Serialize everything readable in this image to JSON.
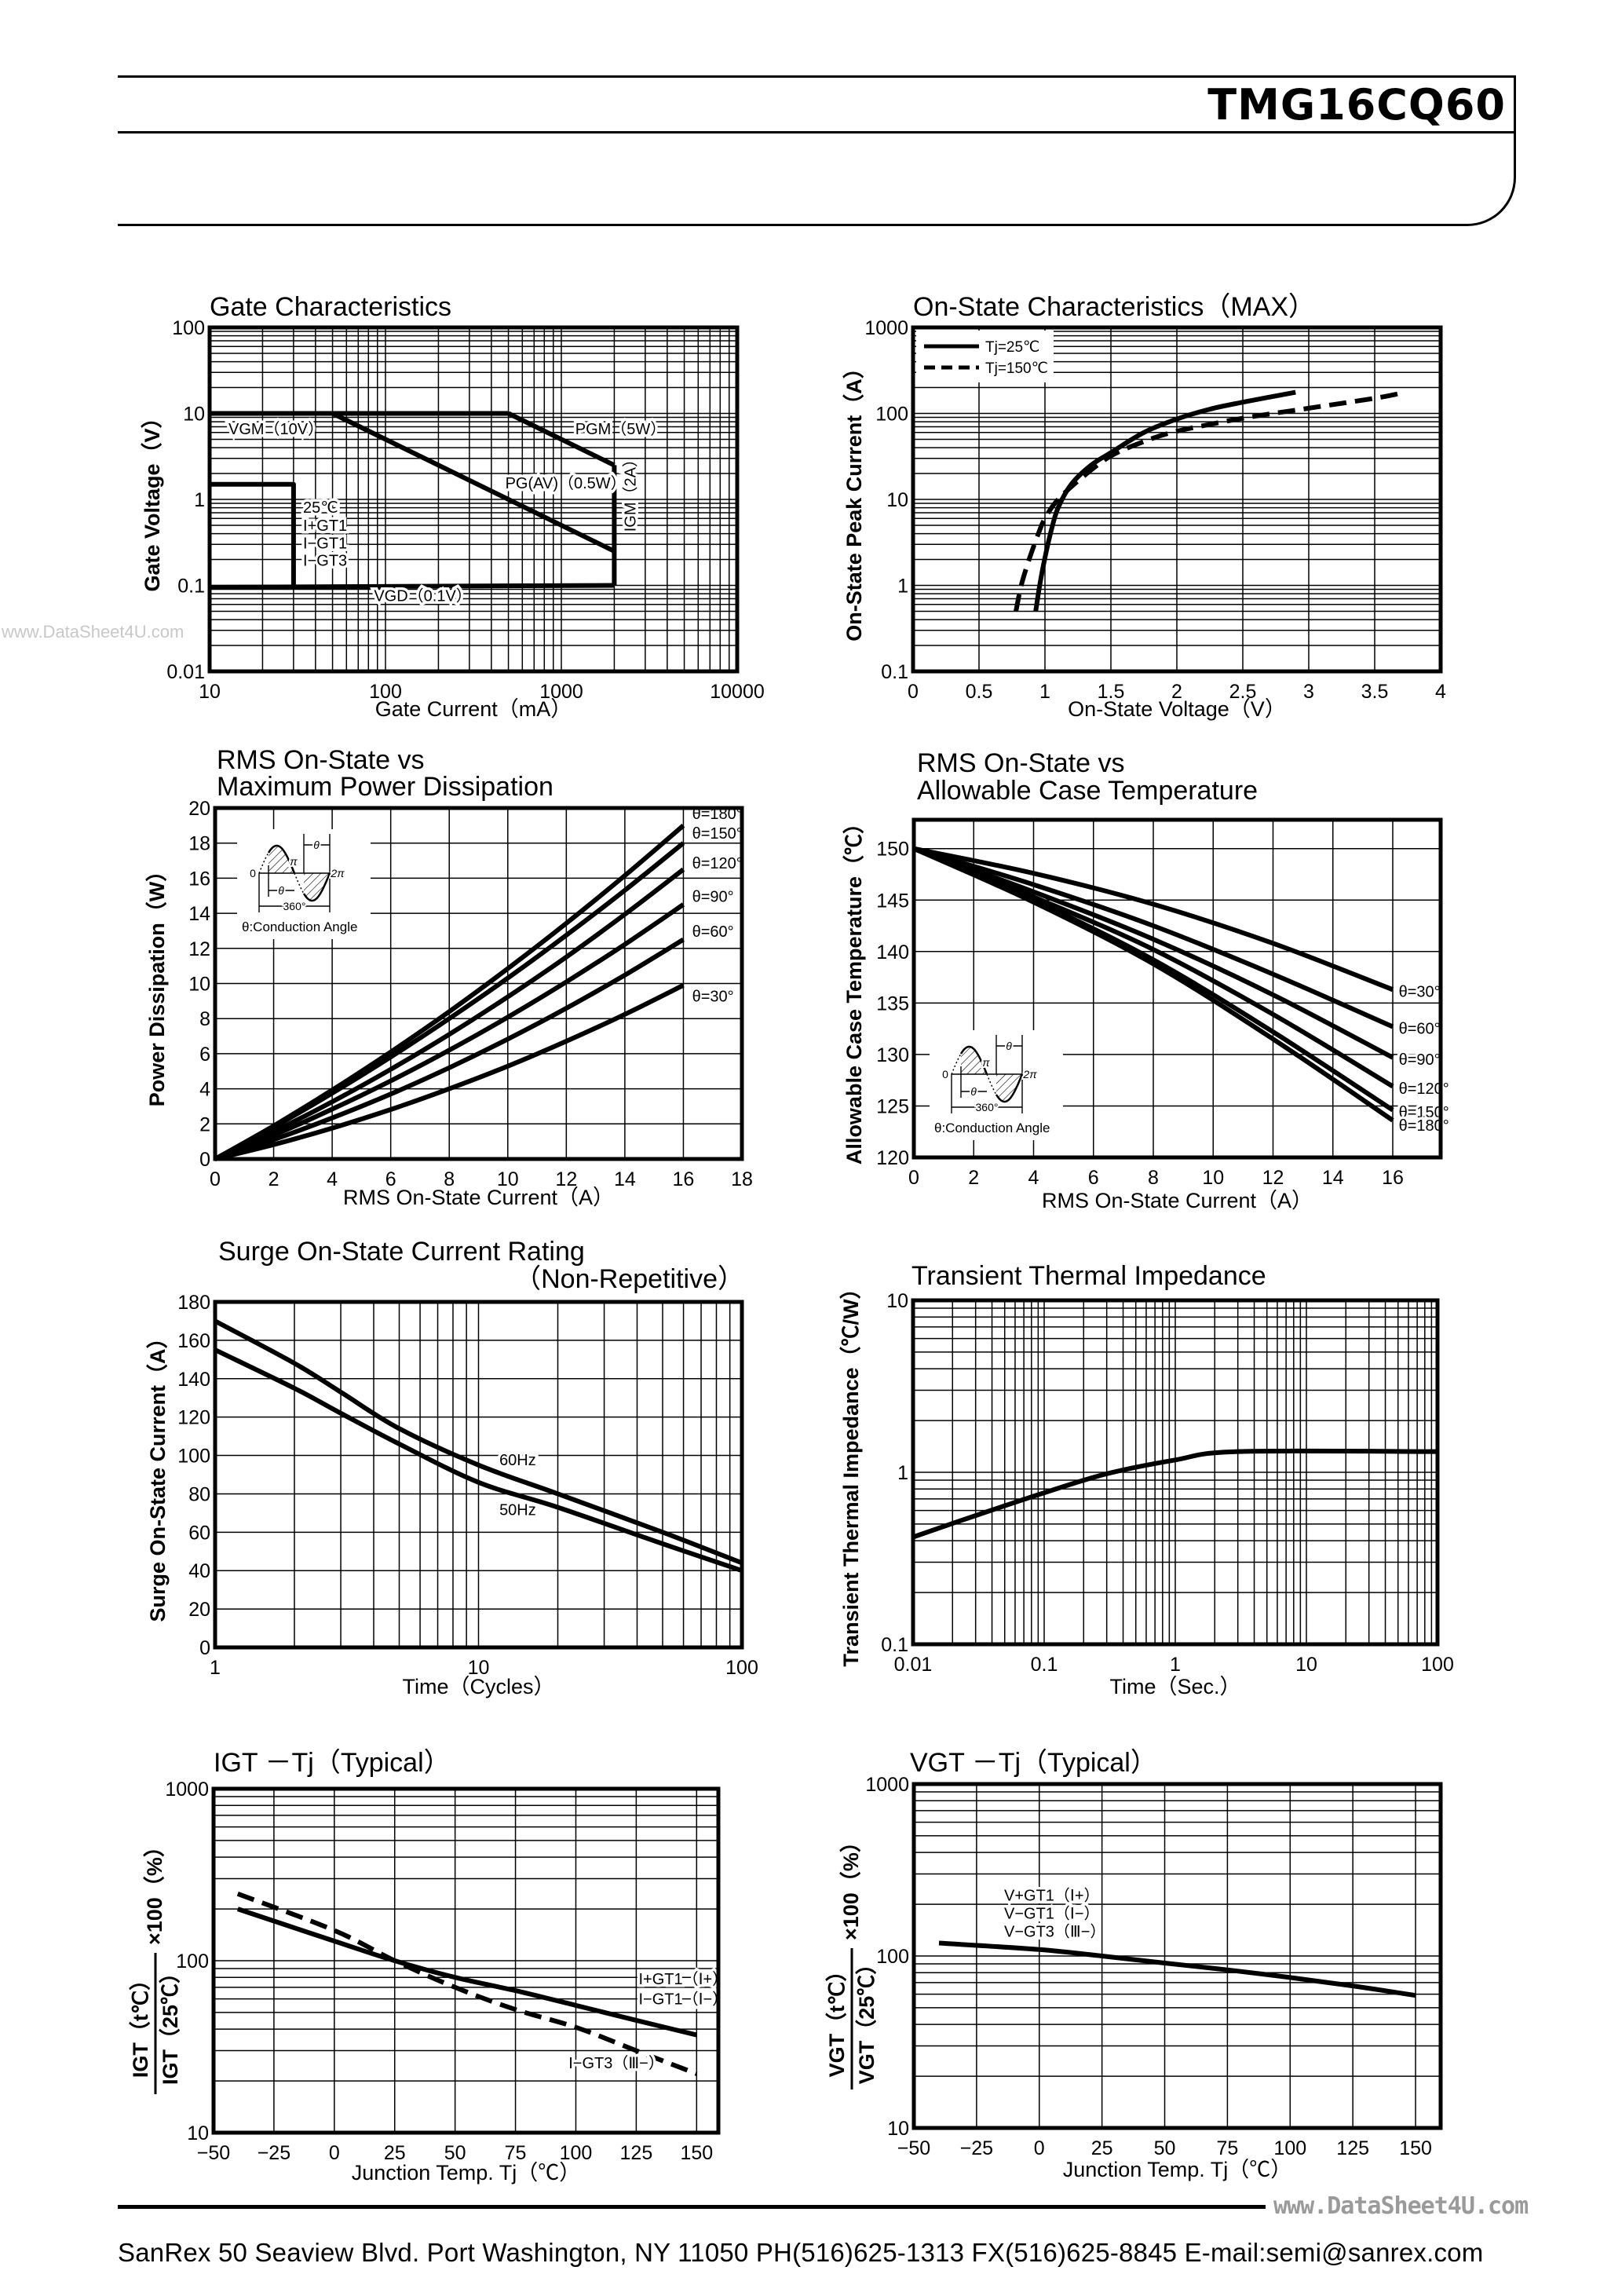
{
  "header": {
    "title": "TMG16CQ60"
  },
  "footer": {
    "address": "SanRex 50 Seaview Blvd. Port Washington, NY 11050 PH(516)625-1313 FX(516)625-8845 E-mail:semi@sanrex.com"
  },
  "watermarks": [
    "www.DataSheet4U.com",
    "www.DataSheet4U.com"
  ],
  "chart_data": [
    {
      "type": "line",
      "title": [
        "Gate Characteristics"
      ],
      "xlabel": "Gate Current（mA）",
      "ylabel": "Gate Voltage（V）",
      "xscale": "log",
      "yscale": "log",
      "xlim": [
        10,
        10000
      ],
      "ylim": [
        0.01,
        100
      ],
      "xtick_labels": [
        "10",
        "100",
        "1000",
        "10000"
      ],
      "ytick_labels": [
        "0.01",
        "0.1",
        "1",
        "10",
        "100"
      ],
      "grid": true,
      "series": [
        {
          "style": "solid",
          "labels": [
            "VGM（10V）"
          ],
          "x": [
            10,
            500
          ],
          "y": [
            10,
            10
          ]
        },
        {
          "style": "solid",
          "labels": [
            "PGM（5W）"
          ],
          "x": [
            500,
            2000
          ],
          "y": [
            10,
            2.5
          ]
        },
        {
          "style": "solid",
          "labels": [
            "IGM（2A）"
          ],
          "x": [
            2000,
            2000
          ],
          "y": [
            2.5,
            0.1
          ]
        },
        {
          "style": "solid",
          "labels": [
            "PG(AV)（0.5W）"
          ],
          "x": [
            50,
            2000
          ],
          "y": [
            10,
            0.25
          ]
        },
        {
          "style": "solid",
          "labels": [
            "VGD（0.1V）"
          ],
          "x": [
            10,
            2000
          ],
          "y": [
            0.095,
            0.1
          ]
        },
        {
          "style": "solid",
          "labels": [
            "25℃",
            "I+GT1",
            "I−GT1",
            "I−GT3"
          ],
          "x": [
            10,
            30,
            30
          ],
          "y": [
            1.5,
            1.5,
            0.1
          ]
        }
      ]
    },
    {
      "type": "line",
      "title": [
        "On-State Characteristics（MAX）"
      ],
      "xlabel": "On-State Voltage（V）",
      "ylabel": "On-State Peak Current（A）",
      "xscale": "linear",
      "yscale": "log",
      "xlim": [
        0,
        4
      ],
      "ylim": [
        0.1,
        1000
      ],
      "xtick_labels": [
        "0",
        "0.5",
        "1",
        "1.5",
        "2",
        "2.5",
        "3",
        "3.5",
        "4"
      ],
      "ytick_labels": [
        "0.1",
        "1",
        "10",
        "100",
        "1000"
      ],
      "grid": true,
      "legend": "top-left",
      "series": [
        {
          "name": "Tj=25℃",
          "style": "solid",
          "labels": [],
          "x": [
            0.93,
            0.96,
            1.0,
            1.05,
            1.1,
            1.2,
            1.35,
            1.5,
            1.75,
            2.0,
            2.25,
            2.5,
            2.9
          ],
          "y": [
            0.5,
            1,
            2.1,
            4.5,
            8,
            15,
            25,
            35,
            60,
            86,
            112,
            135,
            176
          ]
        },
        {
          "name": "Tj=150℃",
          "style": "dashed",
          "labels": [],
          "x": [
            0.78,
            0.82,
            0.88,
            0.95,
            1.0,
            1.1,
            1.3,
            1.5,
            1.75,
            2.0,
            2.5,
            3.0,
            3.5,
            3.7
          ],
          "y": [
            0.5,
            1,
            2,
            4,
            6,
            10,
            19,
            32,
            47,
            62,
            88,
            115,
            150,
            172
          ]
        }
      ]
    },
    {
      "type": "line",
      "title": [
        "RMS On-State vs",
        "Maximum Power Dissipation"
      ],
      "xlabel": "RMS On-State Current（A）",
      "ylabel": "Power Dissipation（W）",
      "xscale": "linear",
      "yscale": "linear",
      "xlim": [
        0,
        18
      ],
      "ylim": [
        0,
        20
      ],
      "xtick_labels": [
        "0",
        "2",
        "4",
        "6",
        "8",
        "10",
        "12",
        "14",
        "16",
        "18"
      ],
      "ytick_labels": [
        "0",
        "2",
        "4",
        "6",
        "8",
        "10",
        "12",
        "14",
        "16",
        "18",
        "20"
      ],
      "grid": true,
      "inset": {
        "zero": "0",
        "pi": "π",
        "two_pi": "2π",
        "theta": "θ",
        "period": "360°",
        "caption": "θ:Conduction Angle"
      },
      "series": [
        {
          "style": "solid",
          "labels": [
            "θ=180°"
          ],
          "x": [
            0,
            2,
            4,
            6,
            8,
            10,
            12,
            14,
            16
          ],
          "y": [
            0,
            1.89,
            3.93,
            6.1,
            8.4,
            10.85,
            13.43,
            16.15,
            19.0
          ]
        },
        {
          "style": "solid",
          "labels": [
            "θ=150°"
          ],
          "x": [
            0,
            2,
            4,
            6,
            8,
            10,
            12,
            14,
            16
          ],
          "y": [
            0,
            1.81,
            3.75,
            5.81,
            8.0,
            10.31,
            12.75,
            15.31,
            18.0
          ]
        },
        {
          "style": "solid",
          "labels": [
            "θ=120°"
          ],
          "x": [
            0,
            2,
            4,
            6,
            8,
            10,
            12,
            14,
            16
          ],
          "y": [
            0,
            1.56,
            3.26,
            5.11,
            7.1,
            9.24,
            11.51,
            13.94,
            16.5
          ]
        },
        {
          "style": "solid",
          "labels": [
            "θ=90°"
          ],
          "x": [
            0,
            2,
            4,
            6,
            8,
            10,
            12,
            14,
            16
          ],
          "y": [
            0,
            1.35,
            2.84,
            4.45,
            6.2,
            8.08,
            10.09,
            12.23,
            14.5
          ]
        },
        {
          "style": "solid",
          "labels": [
            "θ=60°"
          ],
          "x": [
            0,
            2,
            4,
            6,
            8,
            10,
            12,
            14,
            16
          ],
          "y": [
            0,
            1.1,
            2.34,
            3.7,
            5.2,
            6.83,
            8.59,
            10.48,
            12.5
          ]
        },
        {
          "style": "solid",
          "labels": [
            "θ=30°"
          ],
          "x": [
            0,
            2,
            4,
            6,
            8,
            10,
            12,
            14,
            16
          ],
          "y": [
            0,
            0.82,
            1.76,
            2.82,
            4.0,
            5.29,
            6.71,
            8.24,
            9.9
          ]
        }
      ]
    },
    {
      "type": "line",
      "title": [
        "RMS On-State vs",
        "Allowable Case Temperature"
      ],
      "xlabel": "RMS On-State Current（A）",
      "ylabel": "Allowable Case Temperature（℃）",
      "xscale": "linear",
      "yscale": "linear",
      "xlim": [
        0,
        17.6
      ],
      "ylim": [
        120,
        152.8
      ],
      "xtick_labels": [
        "0",
        "2",
        "4",
        "6",
        "8",
        "10",
        "12",
        "14",
        "16"
      ],
      "ytick_labels": [
        "120",
        "125",
        "130",
        "135",
        "140",
        "145",
        "150"
      ],
      "grid": true,
      "inset": {
        "zero": "0",
        "pi": "π",
        "two_pi": "2π",
        "theta": "θ",
        "period": "360°",
        "caption": "θ:Conduction Angle"
      },
      "series": [
        {
          "style": "solid",
          "labels": [
            "θ=30°"
          ],
          "x": [
            0,
            4,
            8,
            12,
            16
          ],
          "y": [
            150,
            147.6,
            144.6,
            140.8,
            136.3
          ]
        },
        {
          "style": "solid",
          "labels": [
            "θ=60°"
          ],
          "x": [
            0,
            4,
            8,
            12,
            16
          ],
          "y": [
            150,
            146.5,
            142.5,
            137.8,
            132.7
          ]
        },
        {
          "style": "solid",
          "labels": [
            "θ=90°"
          ],
          "x": [
            0,
            4,
            8,
            12,
            16
          ],
          "y": [
            150,
            145.8,
            141.2,
            135.8,
            129.7
          ]
        },
        {
          "style": "solid",
          "labels": [
            "θ=120°"
          ],
          "x": [
            0,
            4,
            8,
            12,
            16
          ],
          "y": [
            150,
            145.3,
            140.2,
            133.9,
            126.9
          ]
        },
        {
          "style": "solid",
          "labels": [
            "θ=150°"
          ],
          "x": [
            0,
            4,
            8,
            12,
            16
          ],
          "y": [
            150,
            145.0,
            139.2,
            132.2,
            124.6
          ]
        },
        {
          "style": "solid",
          "labels": [
            "θ=180°"
          ],
          "x": [
            0,
            4,
            8,
            12,
            16
          ],
          "y": [
            150,
            144.8,
            138.8,
            131.5,
            123.6
          ]
        }
      ]
    },
    {
      "type": "line",
      "title": [
        "Surge On-State Current Rating",
        "（Non-Repetitive）"
      ],
      "xlabel": "Time（Cycles）",
      "ylabel": "Surge On-State Current（A）",
      "xscale": "log",
      "yscale": "linear",
      "xlim": [
        1,
        100
      ],
      "ylim": [
        0,
        180
      ],
      "xtick_labels": [
        "1",
        "10",
        "100"
      ],
      "ytick_labels": [
        "0",
        "20",
        "40",
        "60",
        "80",
        "100",
        "120",
        "140",
        "160",
        "180"
      ],
      "grid": true,
      "series": [
        {
          "style": "solid",
          "labels": [
            "60Hz"
          ],
          "x": [
            1,
            2,
            3,
            5,
            10,
            20,
            50,
            100
          ],
          "y": [
            170,
            148,
            133,
            114,
            95,
            80,
            60,
            44
          ]
        },
        {
          "style": "solid",
          "labels": [
            "50Hz"
          ],
          "x": [
            1,
            2,
            3,
            5,
            10,
            20,
            50,
            100
          ],
          "y": [
            155,
            135,
            122,
            106,
            86,
            73,
            54,
            40
          ]
        }
      ]
    },
    {
      "type": "line",
      "title": [
        "Transient Thermal Impedance"
      ],
      "xlabel": "Time（Sec.）",
      "ylabel": "Transient Thermal Impedance（℃/W）",
      "xscale": "log",
      "yscale": "log",
      "xlim": [
        0.01,
        100
      ],
      "ylim": [
        0.1,
        10
      ],
      "xtick_labels": [
        "0.01",
        "0.1",
        "1",
        "10",
        "100"
      ],
      "ytick_labels": [
        "0.1",
        "1",
        "10"
      ],
      "grid": true,
      "series": [
        {
          "style": "solid",
          "labels": [],
          "x": [
            0.01,
            0.03,
            0.1,
            0.3,
            1,
            3,
            100
          ],
          "y": [
            0.42,
            0.56,
            0.76,
            0.98,
            1.18,
            1.32,
            1.32
          ]
        }
      ]
    },
    {
      "type": "line",
      "title": [
        "IGT －Tj（Typical）"
      ],
      "xlabel": "Junction Temp. Tj（℃）",
      "ylabel": {
        "numerator": "IGT（t℃）",
        "denominator": "IGT（25℃）",
        "factor": "×100（%）"
      },
      "xscale": "linear",
      "yscale": "log",
      "xlim": [
        -50,
        159
      ],
      "ylim": [
        10,
        1000
      ],
      "xtick_labels": [
        "−50",
        "−25",
        "0",
        "25",
        "50",
        "75",
        "100",
        "125",
        "150"
      ],
      "ytick_labels": [
        "10",
        "100",
        "1000"
      ],
      "grid": true,
      "series": [
        {
          "style": "solid",
          "labels": [
            "I+GT1（Ⅰ+）",
            "I−GT1（Ⅰ−）"
          ],
          "x": [
            -40,
            0,
            25,
            50,
            75,
            100,
            125,
            150
          ],
          "y": [
            200,
            130,
            100,
            80,
            67,
            55,
            45,
            37
          ]
        },
        {
          "style": "dashed",
          "labels": [
            "I−GT3（Ⅲ−）"
          ],
          "x": [
            -40,
            0,
            25,
            50,
            75,
            100,
            125,
            150
          ],
          "y": [
            245,
            150,
            100,
            70,
            52,
            41,
            30,
            22
          ]
        }
      ]
    },
    {
      "type": "line",
      "title": [
        "VGT －Tj（Typical）"
      ],
      "xlabel": "Junction Temp. Tj（℃）",
      "ylabel": {
        "numerator": "VGT（t℃）",
        "denominator": "VGT（25℃）",
        "factor": "×100（%）"
      },
      "xscale": "linear",
      "yscale": "log",
      "xlim": [
        -50,
        160
      ],
      "ylim": [
        10,
        1000
      ],
      "xtick_labels": [
        "−50",
        "−25",
        "0",
        "25",
        "50",
        "75",
        "100",
        "125",
        "150"
      ],
      "ytick_labels": [
        "10",
        "100",
        "1000"
      ],
      "grid": true,
      "series": [
        {
          "style": "solid",
          "labels": [
            "V+GT1（Ⅰ+）",
            "V−GT1（Ⅰ−）",
            "V−GT3（Ⅲ−）"
          ],
          "x": [
            -40,
            0,
            25,
            50,
            75,
            100,
            125,
            150
          ],
          "y": [
            119,
            109,
            100,
            91,
            83,
            75,
            67,
            59
          ]
        }
      ]
    }
  ]
}
